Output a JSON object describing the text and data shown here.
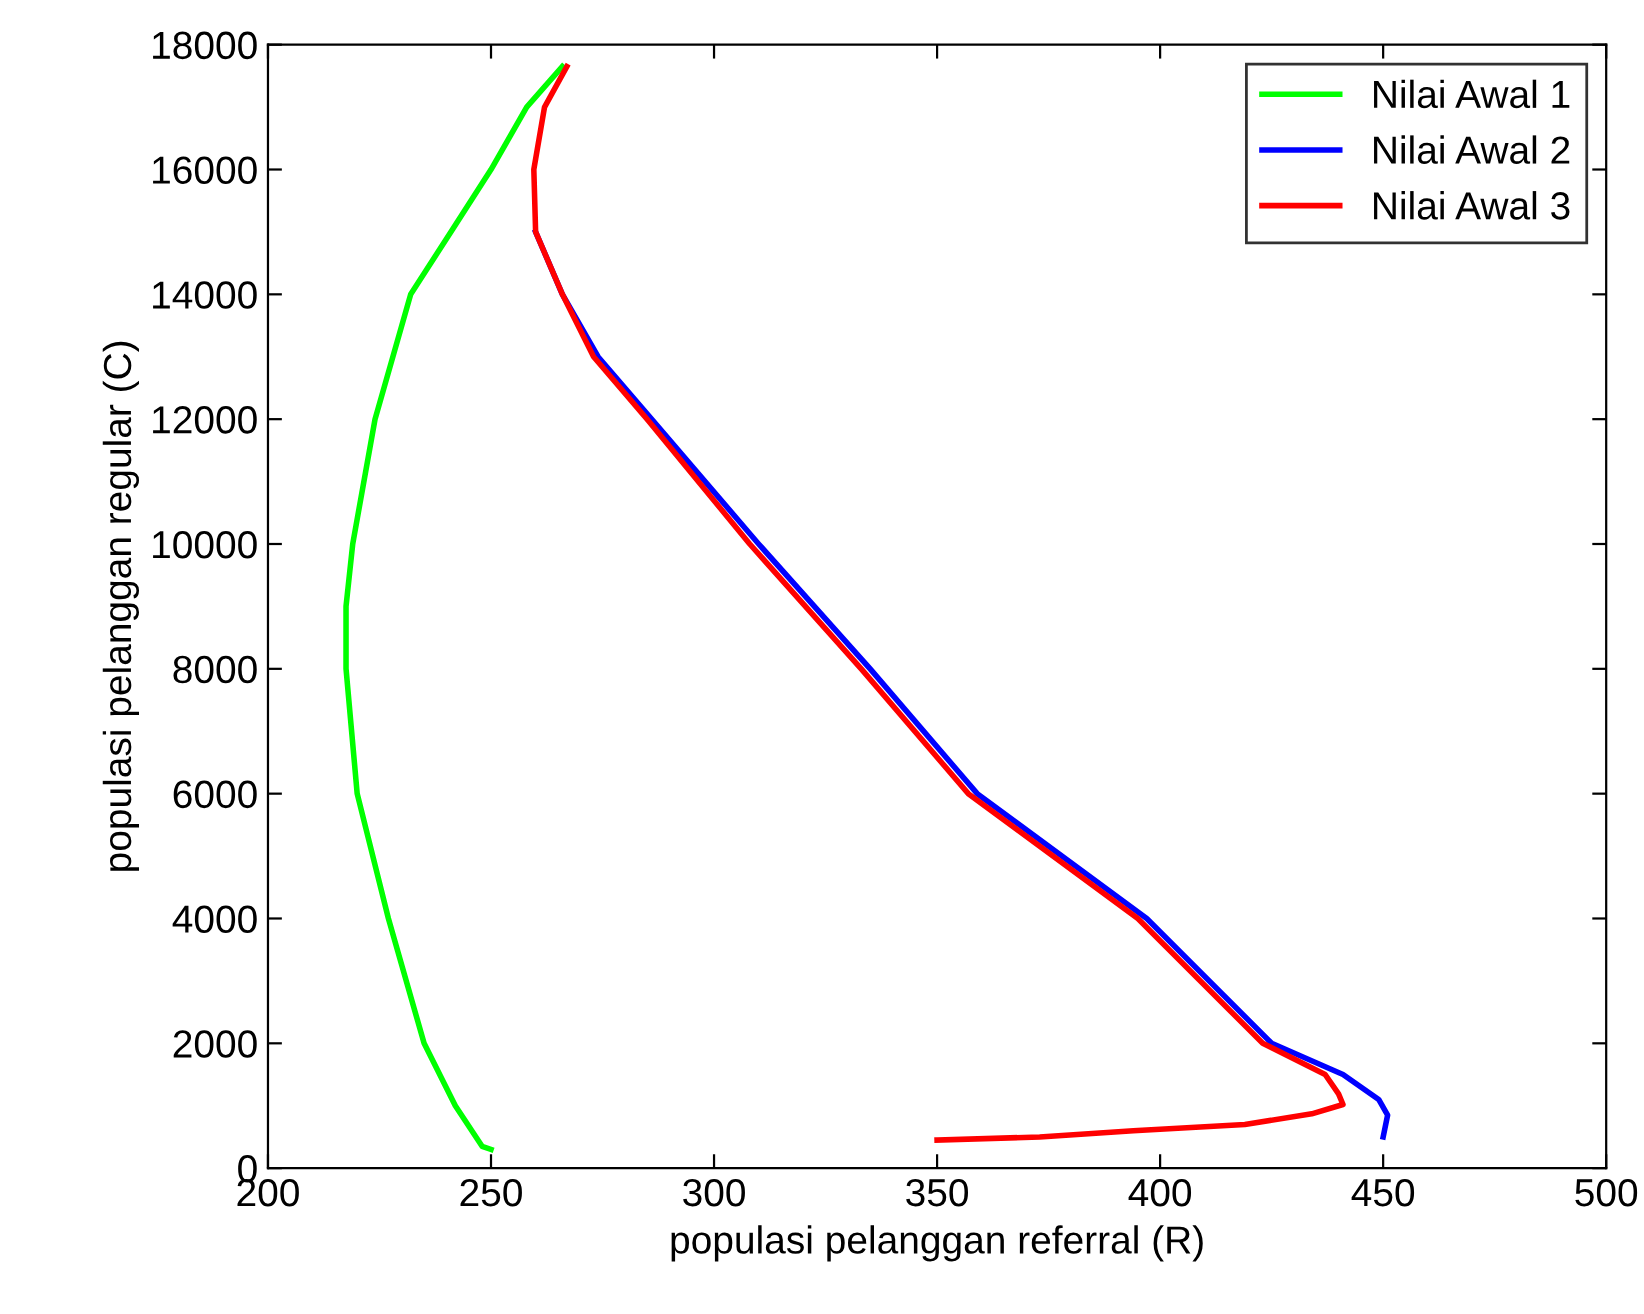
{
  "chart_data": {
    "type": "line",
    "xlabel": "populasi pelanggan referral (R)",
    "ylabel": "populasi pelanggan regular (C)",
    "xlim": [
      200,
      500
    ],
    "ylim": [
      0,
      18000
    ],
    "xticks": [
      200,
      250,
      300,
      350,
      400,
      450,
      500
    ],
    "yticks": [
      0,
      2000,
      4000,
      6000,
      8000,
      10000,
      12000,
      14000,
      16000,
      18000
    ],
    "grid": false,
    "legend": "top right",
    "marker": "none",
    "line_style": "solid",
    "series": [
      {
        "name": "Nilai Awal 1",
        "color": "#00ff00",
        "x": [
          250,
          248,
          242,
          235,
          227,
          220,
          217.5,
          217.5,
          219,
          224,
          232,
          241,
          250,
          258,
          266
        ],
        "values": [
          300,
          350,
          1000,
          2000,
          4000,
          6000,
          8000,
          9000,
          10000,
          12000,
          14000,
          15000,
          16000,
          17000,
          17650
        ]
      },
      {
        "name": "Nilai Awal 2",
        "color": "#0000ff",
        "x": [
          450,
          451,
          449,
          441,
          425,
          397,
          359,
          335,
          310,
          286,
          274,
          266,
          260
        ],
        "values": [
          500,
          850,
          1100,
          1500,
          2000,
          4000,
          6000,
          8000,
          10000,
          12000,
          13000,
          14000,
          15000
        ]
      },
      {
        "name": "Nilai Awal 3",
        "color": "#ff0000",
        "x": [
          350,
          373,
          394,
          419,
          434,
          441,
          440,
          437,
          423,
          395,
          357,
          333,
          308,
          285,
          273,
          266,
          260,
          259.6,
          262,
          267
        ],
        "values": [
          450,
          500,
          600,
          700,
          870,
          1020,
          1190,
          1500,
          2000,
          4000,
          6000,
          8000,
          10000,
          12000,
          13000,
          14000,
          15000,
          16000,
          17000,
          17650
        ]
      }
    ]
  }
}
